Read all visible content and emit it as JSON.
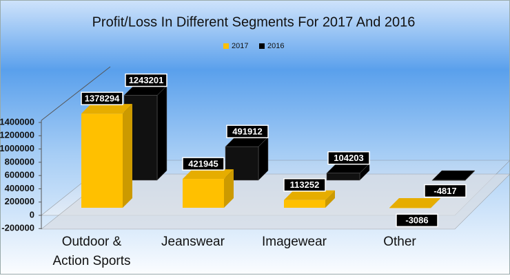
{
  "chart_data": {
    "type": "bar3d",
    "title": "Profit/Loss  In Different Segments For 2017 And 2016",
    "categories": [
      "Outdoor & Action Sports",
      "Jeanswear",
      "Imagewear",
      "Other"
    ],
    "series": [
      {
        "name": "2017",
        "color": "#ffc000",
        "values": [
          1378294,
          421945,
          113252,
          -3086
        ]
      },
      {
        "name": "2016",
        "color": "#000000",
        "values": [
          1243201,
          491912,
          104203,
          -4817
        ]
      }
    ],
    "ylim": [
      -200000,
      1400000
    ],
    "yticks": [
      -200000,
      0,
      200000,
      400000,
      600000,
      800000,
      1000000,
      1200000,
      1400000
    ],
    "legend": "top"
  }
}
